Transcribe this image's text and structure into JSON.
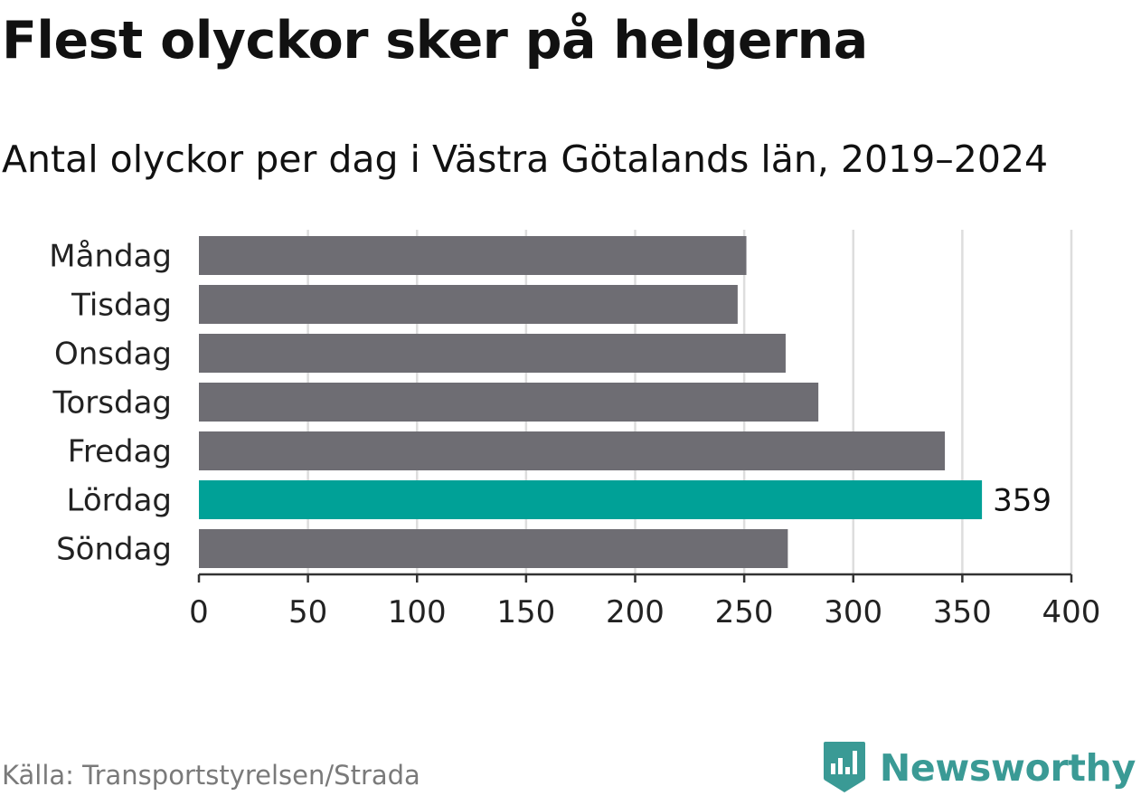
{
  "title": "Flest olyckor sker på helgerna",
  "subtitle": "Antal olyckor per dag i Västra Götalands län, 2019–2024",
  "source": "Källa: Transportstyrelsen/Strada",
  "brand": {
    "name": "Newsworthy",
    "icon": "newsworthy-logo-icon",
    "color": "#3a9a95"
  },
  "colors": {
    "bar": "#6e6d73",
    "highlight": "#00a197",
    "grid": "#dddddd",
    "axis": "#333333"
  },
  "chart_data": {
    "type": "bar",
    "orientation": "horizontal",
    "categories": [
      "Måndag",
      "Tisdag",
      "Onsdag",
      "Torsdag",
      "Fredag",
      "Lördag",
      "Söndag"
    ],
    "values": [
      251,
      247,
      269,
      284,
      342,
      359,
      270
    ],
    "highlight_index": 5,
    "data_labels": [
      {
        "index": 5,
        "text": "359"
      }
    ],
    "xlim": [
      0,
      400
    ],
    "xticks": [
      "0",
      "50",
      "100",
      "150",
      "200",
      "250",
      "300",
      "350",
      "400"
    ],
    "grid": true
  }
}
